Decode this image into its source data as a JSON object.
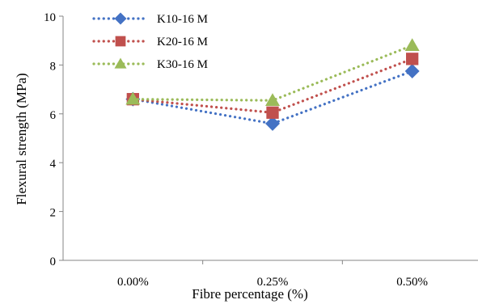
{
  "chart_data": {
    "type": "line",
    "title": "",
    "xlabel": "Fibre percentage (%)",
    "ylabel": "Flexural strength (MPa)",
    "categories": [
      "0.00%",
      "0.25%",
      "0.50%"
    ],
    "ylim": [
      0,
      10
    ],
    "yticks": [
      0,
      2,
      4,
      6,
      8,
      10
    ],
    "grid": false,
    "legend_position": "top-left",
    "series": [
      {
        "name": "K10-16 M",
        "values": [
          6.6,
          5.6,
          7.75
        ],
        "color": "#4472C4",
        "marker": "diamond"
      },
      {
        "name": "K20-16 M",
        "values": [
          6.6,
          6.05,
          8.25
        ],
        "color": "#C0504D",
        "marker": "square"
      },
      {
        "name": "K30-16 M",
        "values": [
          6.6,
          6.55,
          8.8
        ],
        "color": "#9BBB59",
        "marker": "triangle"
      }
    ]
  }
}
